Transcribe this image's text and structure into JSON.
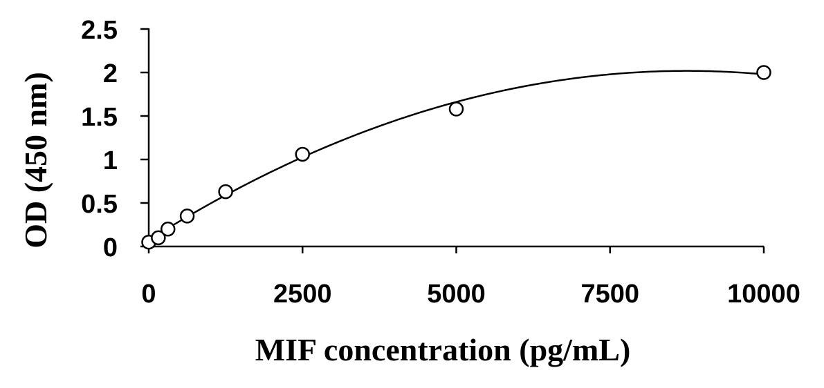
{
  "chart_data": {
    "type": "scatter",
    "title": "",
    "xlabel": "MIF concentration (pg/mL)",
    "ylabel": "OD (450 nm)",
    "xlim": [
      0,
      10000
    ],
    "ylim": [
      0,
      2.5
    ],
    "xticks": [
      0,
      2500,
      5000,
      7500,
      10000
    ],
    "yticks": [
      0,
      0.5,
      1,
      1.5,
      2,
      2.5
    ],
    "xtick_labels": [
      "0",
      "2500",
      "5000",
      "7500",
      "10000"
    ],
    "ytick_labels": [
      "0",
      "0.5",
      "1",
      "1.5",
      "2",
      "2.5"
    ],
    "grid": false,
    "legend": "none",
    "series": [
      {
        "marker": "open-circle",
        "x": [
          0,
          156,
          312,
          625,
          1250,
          2500,
          5000,
          10000
        ],
        "y": [
          0.05,
          0.1,
          0.2,
          0.35,
          0.63,
          1.06,
          1.58,
          2.0
        ]
      }
    ],
    "fit": {
      "type": "polynomial-order-2",
      "x_range": [
        0,
        10000
      ],
      "x": [
        0,
        1250,
        2500,
        3750,
        5000,
        6250,
        7500,
        8750,
        10000
      ],
      "y": [
        0.06,
        0.6,
        1.04,
        1.38,
        1.66,
        1.86,
        1.97,
        2.01,
        1.99
      ]
    }
  }
}
